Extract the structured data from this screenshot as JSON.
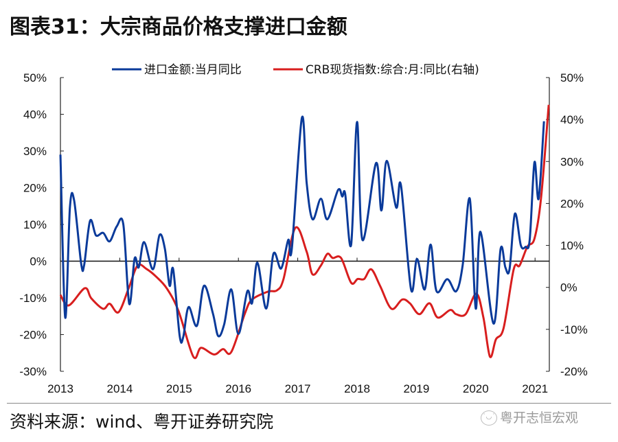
{
  "title": "图表31：大宗商品价格支撑进口金额",
  "source": "资料来源：wind、粤开证券研究院",
  "watermark": "粤开志恒宏观",
  "chart_data": {
    "type": "line",
    "title": "图表31：大宗商品价格支撑进口金额",
    "legend_position": "top",
    "x_ticks": [
      "2013",
      "2014",
      "2015",
      "2016",
      "2017",
      "2018",
      "2019",
      "2020",
      "2021"
    ],
    "xlim": [
      2013,
      2021.27
    ],
    "left_axis": {
      "ylim": [
        -30,
        50
      ],
      "ticks": [
        "50%",
        "40%",
        "30%",
        "20%",
        "10%",
        "0%",
        "-10%",
        "-20%",
        "-30%"
      ]
    },
    "right_axis": {
      "ylim": [
        -20,
        50
      ],
      "ticks": [
        "50%",
        "40%",
        "30%",
        "20%",
        "10%",
        "0%",
        "-10%",
        "-20%"
      ]
    },
    "series": [
      {
        "name": "进口金额:当月同比",
        "axis": "left",
        "color": "#0a3a9a",
        "x": [
          2013.0,
          2013.08,
          2013.16,
          2013.23,
          2013.35,
          2013.4,
          2013.5,
          2013.6,
          2013.72,
          2013.83,
          2013.95,
          2014.06,
          2014.16,
          2014.25,
          2014.32,
          2014.41,
          2014.56,
          2014.67,
          2014.76,
          2014.84,
          2014.9,
          2015.01,
          2015.07,
          2015.16,
          2015.3,
          2015.42,
          2015.57,
          2015.66,
          2015.76,
          2015.88,
          2016.0,
          2016.15,
          2016.23,
          2016.32,
          2016.47,
          2016.59,
          2016.72,
          2016.84,
          2016.9,
          2017.07,
          2017.15,
          2017.25,
          2017.39,
          2017.5,
          2017.68,
          2017.75,
          2017.8,
          2017.9,
          2018.0,
          2018.09,
          2018.32,
          2018.41,
          2018.5,
          2018.66,
          2018.74,
          2018.91,
          2019.01,
          2019.14,
          2019.24,
          2019.34,
          2019.52,
          2019.67,
          2019.78,
          2019.9,
          2020.0,
          2020.08,
          2020.3,
          2020.42,
          2020.5,
          2020.57,
          2020.66,
          2020.76,
          2020.84,
          2020.91,
          2020.99,
          2021.06,
          2021.15
        ],
        "y": [
          29,
          -15.3,
          14.6,
          16.6,
          -0.7,
          -1,
          11,
          7,
          7.7,
          5.4,
          9.5,
          10,
          -11.6,
          0.7,
          -1.7,
          5.2,
          -2.2,
          7.1,
          3.4,
          -6.7,
          -2.2,
          -20.4,
          -20.7,
          -12.5,
          -17.6,
          -6.7,
          -14.2,
          -20.4,
          -17.2,
          -7.7,
          -19.8,
          -8.2,
          -11.4,
          -0.4,
          -12.9,
          2,
          -2,
          5.8,
          3.4,
          39,
          21.3,
          11.4,
          17,
          11.4,
          19.4,
          17.6,
          18.3,
          4.5,
          37.9,
          5.8,
          26.7,
          13.8,
          27.3,
          14.6,
          20.7,
          -7.7,
          0.6,
          -7.7,
          4.5,
          -8.2,
          -4.9,
          -8.2,
          -1.1,
          17,
          -12.9,
          8,
          -17,
          3.4,
          -1.7,
          -2.2,
          12.9,
          4.3,
          3.9,
          5.8,
          26.9,
          17,
          38.1
        ]
      },
      {
        "name": "CRB现货指数:综合:月:同比(右轴)",
        "axis": "right",
        "color": "#d81e1e",
        "x": [
          2013.0,
          2013.14,
          2013.41,
          2013.52,
          2013.72,
          2013.83,
          2013.98,
          2014.15,
          2014.3,
          2014.45,
          2014.61,
          2014.79,
          2014.99,
          2015.24,
          2015.37,
          2015.59,
          2015.74,
          2015.88,
          2016.11,
          2016.23,
          2016.5,
          2016.65,
          2016.76,
          2016.96,
          2017.15,
          2017.25,
          2017.39,
          2017.5,
          2017.59,
          2017.73,
          2017.9,
          2018.01,
          2018.12,
          2018.24,
          2018.39,
          2018.58,
          2018.76,
          2018.89,
          2019.05,
          2019.22,
          2019.36,
          2019.57,
          2019.67,
          2019.83,
          2020.01,
          2020.13,
          2020.24,
          2020.34,
          2020.47,
          2020.64,
          2020.74,
          2020.87,
          2020.99,
          2021.1,
          2021.23
        ],
        "y": [
          -1.8,
          -4.3,
          -0.2,
          -2.6,
          -5.1,
          -3.9,
          -5.9,
          -0.2,
          5.2,
          4.4,
          2.6,
          -0.2,
          -5.6,
          -16.5,
          -14.4,
          -16,
          -14.7,
          -15.4,
          -6.2,
          -2.9,
          -1,
          -0.7,
          2,
          14.2,
          8.5,
          3.1,
          5.2,
          8,
          7,
          7,
          1.1,
          2,
          2,
          4.3,
          0.3,
          -5.1,
          -2.9,
          -3.8,
          -6.4,
          -3.8,
          -7.2,
          -5.4,
          -6.4,
          -6.4,
          -1.5,
          -7.2,
          -16.5,
          -12.4,
          -9.7,
          4.3,
          5.2,
          9.7,
          11.6,
          21.1,
          43.5
        ]
      }
    ]
  }
}
